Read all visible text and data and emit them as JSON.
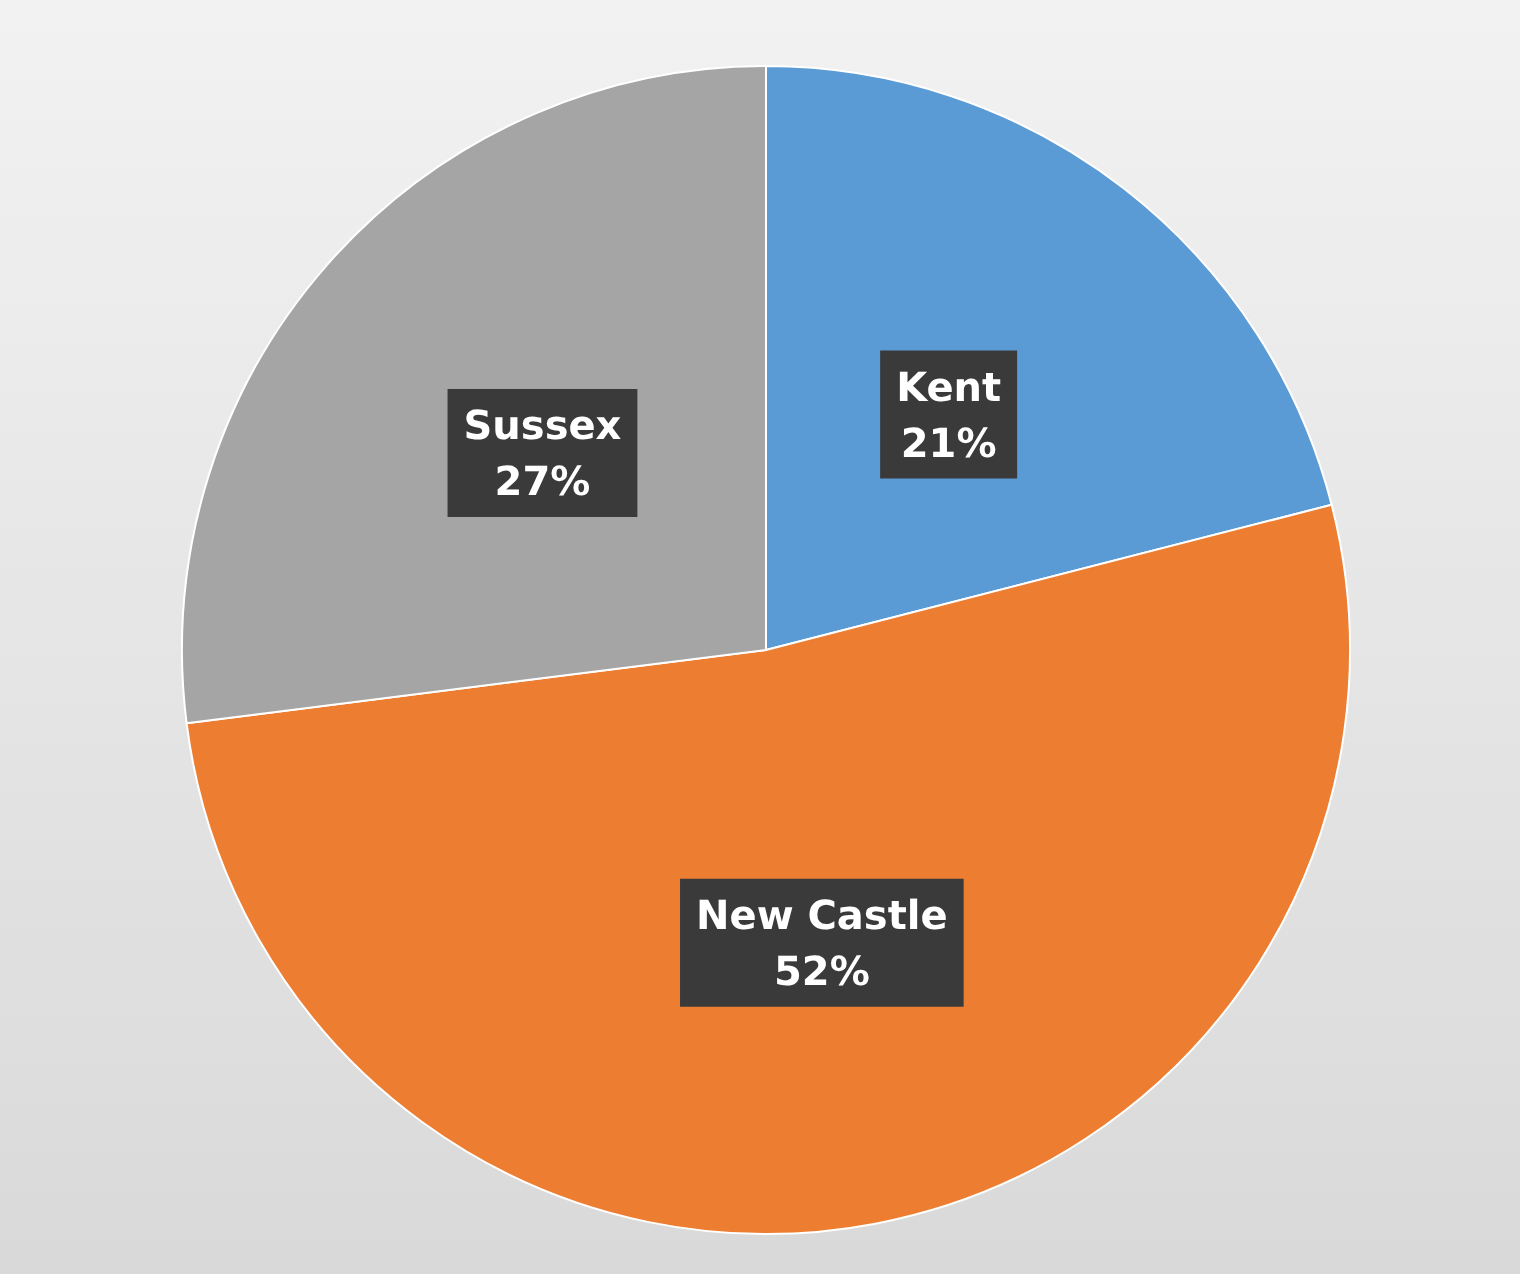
{
  "chart_data": {
    "type": "pie",
    "categories": [
      "Kent",
      "New Castle",
      "Sussex"
    ],
    "values": [
      21,
      52,
      27
    ],
    "colors": [
      "#5b9bd5",
      "#ed7d31",
      "#a5a5a5"
    ],
    "value_labels": [
      "21%",
      "52%",
      "27%"
    ],
    "legend": false
  }
}
